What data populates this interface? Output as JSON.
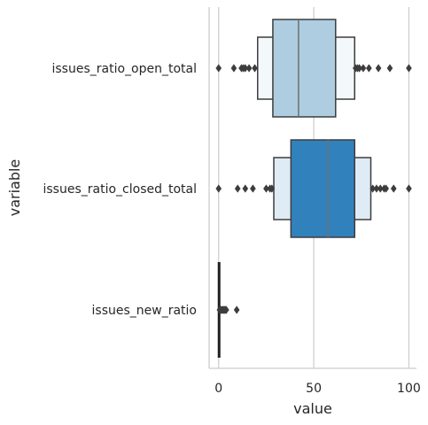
{
  "chart_data": {
    "type": "boxen",
    "xlabel": "value",
    "ylabel": "variable",
    "xlim": [
      -5,
      104
    ],
    "xticks": [
      0,
      50,
      100
    ],
    "grid": "vertical",
    "categories": [
      "issues_ratio_open_total",
      "issues_ratio_closed_total",
      "issues_new_ratio"
    ],
    "series": [
      {
        "category": "issues_ratio_open_total",
        "color": "#aecde1",
        "median": 42,
        "boxes": [
          [
            28.5,
            61.5
          ],
          [
            20.5,
            71.5
          ]
        ],
        "outliers": [
          0,
          8,
          12,
          13,
          14,
          16,
          19,
          72,
          73,
          74,
          76,
          79,
          84,
          90,
          100
        ]
      },
      {
        "category": "issues_ratio_closed_total",
        "color": "#3181bd",
        "median": 57.5,
        "boxes": [
          [
            38,
            71.5
          ],
          [
            29,
            80
          ]
        ],
        "outliers": [
          0,
          10,
          14,
          18,
          25,
          27,
          28,
          81,
          83,
          85,
          87,
          88,
          92,
          100
        ]
      },
      {
        "category": "issues_new_ratio",
        "color": "#1f1f1f",
        "median": 0,
        "boxes": [
          [
            0,
            0.5
          ],
          [
            0,
            1
          ]
        ],
        "outliers": [
          0.5,
          1,
          1.5,
          2,
          2.5,
          3,
          3.5,
          4,
          9.5
        ]
      }
    ]
  }
}
